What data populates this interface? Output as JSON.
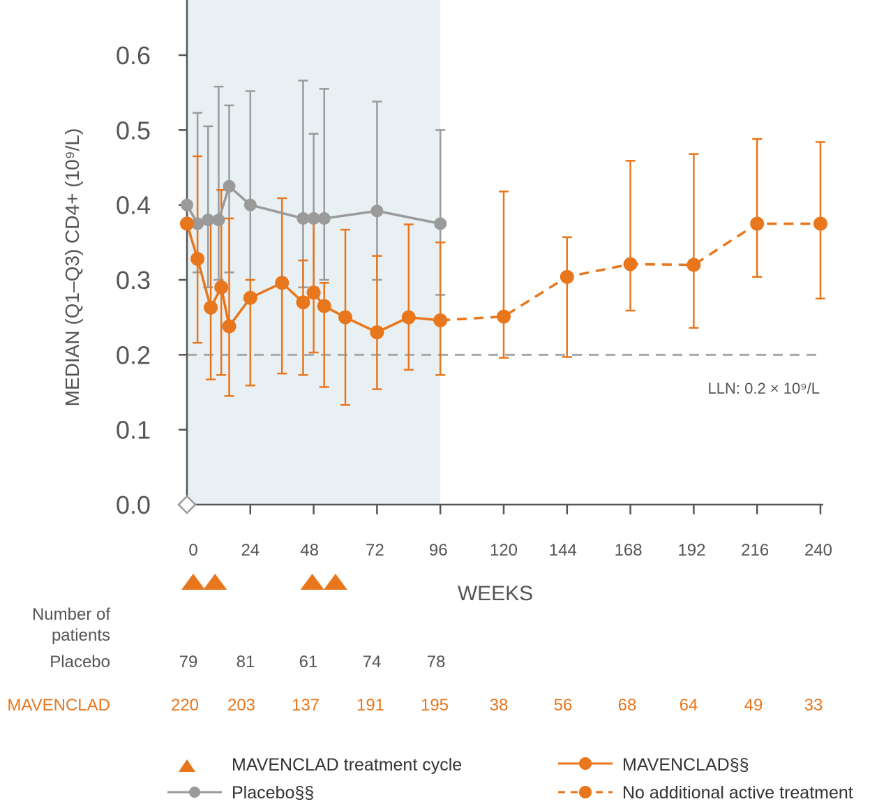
{
  "chart_data": {
    "type": "line",
    "ylabel": "MEDIAN (Q1–Q3) CD4+ (10⁹/L)",
    "xlabel": "WEEKS",
    "ylim": [
      0.0,
      0.6
    ],
    "yticks": [
      "0.0",
      "0.1",
      "0.2",
      "0.3",
      "0.4",
      "0.5",
      "0.6"
    ],
    "xticks": [
      "0",
      "24",
      "48",
      "72",
      "96",
      "120",
      "144",
      "168",
      "192",
      "216",
      "240"
    ],
    "shaded_region_weeks": [
      0,
      96
    ],
    "reference_line": {
      "y": 0.2,
      "label": "LLN: 0.2 × 10⁹/L"
    },
    "series": [
      {
        "name": "Placebo§§",
        "color": "#9a9a9a",
        "style": "solid",
        "points": [
          {
            "x": 0,
            "y": 0.4
          },
          {
            "x": 4,
            "y": 0.375,
            "q1": 0.31,
            "q3": 0.523
          },
          {
            "x": 8,
            "y": 0.38,
            "q1": 0.29,
            "q3": 0.505
          },
          {
            "x": 12,
            "y": 0.38,
            "q1": 0.3,
            "q3": 0.558
          },
          {
            "x": 16,
            "y": 0.425,
            "q1": 0.31,
            "q3": 0.533
          },
          {
            "x": 24,
            "y": 0.4,
            "q1": 0.3,
            "q3": 0.552
          },
          {
            "x": 44,
            "y": 0.382,
            "q1": 0.29,
            "q3": 0.566
          },
          {
            "x": 48,
            "y": 0.382,
            "q1": 0.29,
            "q3": 0.495
          },
          {
            "x": 52,
            "y": 0.382,
            "q1": 0.3,
            "q3": 0.555
          },
          {
            "x": 72,
            "y": 0.392,
            "q1": 0.3,
            "q3": 0.538
          },
          {
            "x": 96,
            "y": 0.375,
            "q1": 0.28,
            "q3": 0.5
          }
        ]
      },
      {
        "name": "MAVENCLAD§§",
        "color": "#e8761c",
        "style": "solid",
        "points": [
          {
            "x": 0,
            "y": 0.375
          },
          {
            "x": 4,
            "y": 0.328,
            "q1": 0.216,
            "q3": 0.465
          },
          {
            "x": 9,
            "y": 0.263,
            "q1": 0.167,
            "q3": 0.382
          },
          {
            "x": 13,
            "y": 0.29,
            "q1": 0.173,
            "q3": 0.42
          },
          {
            "x": 16,
            "y": 0.238,
            "q1": 0.145,
            "q3": 0.382
          },
          {
            "x": 24,
            "y": 0.276,
            "q1": 0.159,
            "q3": 0.3
          },
          {
            "x": 36,
            "y": 0.296,
            "q1": 0.175,
            "q3": 0.409
          },
          {
            "x": 44,
            "y": 0.27,
            "q1": 0.173,
            "q3": 0.326
          },
          {
            "x": 48,
            "y": 0.283,
            "q1": 0.203,
            "q3": 0.38
          },
          {
            "x": 52,
            "y": 0.265,
            "q1": 0.157,
            "q3": 0.296
          },
          {
            "x": 60,
            "y": 0.25,
            "q1": 0.133,
            "q3": 0.367
          },
          {
            "x": 72,
            "y": 0.23,
            "q1": 0.154,
            "q3": 0.332
          },
          {
            "x": 84,
            "y": 0.25,
            "q1": 0.18,
            "q3": 0.374
          },
          {
            "x": 96,
            "y": 0.246,
            "q1": 0.173,
            "q3": 0.35
          }
        ]
      },
      {
        "name": "No additional active treatment",
        "color": "#e8761c",
        "style": "dashed",
        "points": [
          {
            "x": 96,
            "y": 0.246
          },
          {
            "x": 120,
            "y": 0.251,
            "q1": 0.196,
            "q3": 0.418
          },
          {
            "x": 144,
            "y": 0.304,
            "q1": 0.197,
            "q3": 0.357
          },
          {
            "x": 168,
            "y": 0.321,
            "q1": 0.259,
            "q3": 0.459
          },
          {
            "x": 192,
            "y": 0.32,
            "q1": 0.236,
            "q3": 0.468
          },
          {
            "x": 216,
            "y": 0.375,
            "q1": 0.304,
            "q3": 0.488
          },
          {
            "x": 240,
            "y": 0.375,
            "q1": 0.275,
            "q3": 0.484
          }
        ]
      }
    ],
    "treatment_cycles_weeks": [
      0,
      8,
      48,
      56
    ],
    "patients": {
      "header": [
        "Number of",
        "patients"
      ],
      "placebo_label": "Placebo",
      "placebo_counts": [
        "79",
        "81",
        "61",
        "74",
        "78"
      ],
      "mavenclad_label": "MAVENCLAD",
      "mavenclad_counts": [
        "220",
        "203",
        "137",
        "191",
        "195",
        "38",
        "56",
        "68",
        "64",
        "49",
        "33"
      ]
    },
    "legend": {
      "treatment_cycle": "MAVENCLAD treatment cycle",
      "placebo": "Placebo§§",
      "mavenclad": "MAVENCLAD§§",
      "no_treatment": "No additional active treatment"
    }
  }
}
